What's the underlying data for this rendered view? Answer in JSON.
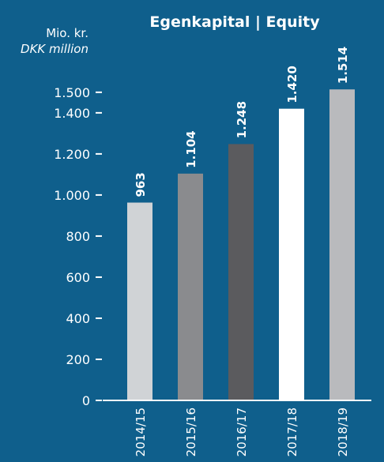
{
  "chart_data": {
    "type": "bar",
    "title": "Egenkapital | Equity",
    "unit_label_da": "Mio. kr.",
    "unit_label_en": "DKK million",
    "categories": [
      "2014/15",
      "2015/16",
      "2016/17",
      "2017/18",
      "2018/19"
    ],
    "values": [
      963,
      1104,
      1248,
      1420,
      1514
    ],
    "value_labels": [
      "963",
      "1.104",
      "1.248",
      "1.420",
      "1.514"
    ],
    "ylim": [
      0,
      1600
    ],
    "yticks": [
      0,
      200,
      400,
      600,
      800,
      1000,
      1200,
      1400,
      1500
    ],
    "ytick_labels": [
      "0",
      "200",
      "400",
      "600",
      "800",
      "1.000",
      "1.200",
      "1.400",
      "1.500"
    ],
    "bar_colors": [
      "#d0d3d6",
      "#8a8b8e",
      "#5b5b5e",
      "#ffffff",
      "#b9babd"
    ],
    "background_color": "#0f5f8c",
    "grid": false
  }
}
